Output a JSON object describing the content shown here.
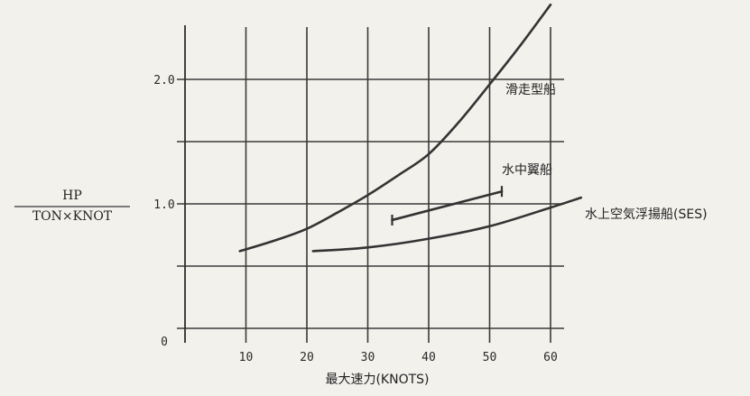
{
  "chart_data": {
    "type": "line",
    "title": "",
    "xlabel": "最大速力(KNOTS)",
    "ylabel": {
      "numerator": "HP",
      "denominator": "TON×KNOT"
    },
    "xlim": [
      0,
      65
    ],
    "ylim": [
      0,
      2.5
    ],
    "x_ticks": [
      {
        "value": 0,
        "label": "0"
      },
      {
        "value": 10,
        "label": "10"
      },
      {
        "value": 20,
        "label": "20"
      },
      {
        "value": 30,
        "label": "30"
      },
      {
        "value": 40,
        "label": "40"
      },
      {
        "value": 50,
        "label": "50"
      },
      {
        "value": 60,
        "label": "60"
      }
    ],
    "y_ticks": [
      {
        "value": 1.0,
        "label": "1.0"
      },
      {
        "value": 2.0,
        "label": "2.0"
      }
    ],
    "y_gridlines": [
      0.5,
      1.0,
      1.5,
      2.0
    ],
    "grid": true,
    "series": [
      {
        "name": "滑走型船",
        "style": "curve",
        "x": [
          9,
          15,
          20,
          25,
          30,
          35,
          40,
          45,
          50,
          55,
          60
        ],
        "y": [
          0.62,
          0.71,
          0.8,
          0.93,
          1.07,
          1.23,
          1.4,
          1.66,
          1.96,
          2.27,
          2.6
        ]
      },
      {
        "name": "水中翼船",
        "style": "bracketed",
        "x": [
          34,
          52
        ],
        "y": [
          0.87,
          1.1
        ]
      },
      {
        "name": "水上空気浮揚船(SES)",
        "style": "curve",
        "x": [
          21,
          30,
          40,
          50,
          60,
          65
        ],
        "y": [
          0.62,
          0.65,
          0.72,
          0.82,
          0.97,
          1.05
        ]
      }
    ]
  }
}
